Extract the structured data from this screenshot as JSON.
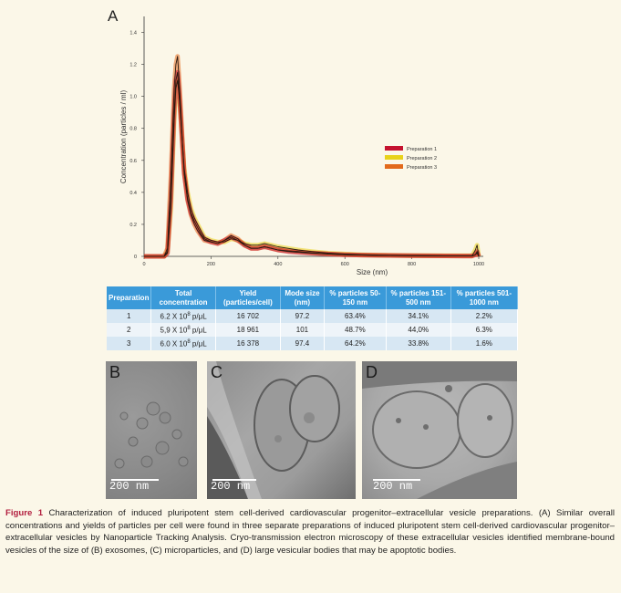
{
  "figure": {
    "panel_a_letter": "A",
    "panel_b_letter": "B",
    "panel_c_letter": "C",
    "panel_d_letter": "D",
    "scale_label": "200 nm"
  },
  "chart_data": {
    "type": "line",
    "xlabel": "Size (nm)",
    "ylabel": "Concentration (particles / ml)",
    "xlim": [
      0,
      1000
    ],
    "ylim": [
      0,
      1.5
    ],
    "x_ticks": [
      "0",
      "200",
      "400",
      "600",
      "800",
      "1000"
    ],
    "y_ticks": [
      "0",
      "0.2",
      "0.4",
      "0.6",
      "0.8",
      "1.0",
      "1.2",
      "1.4"
    ],
    "legend_position": "right",
    "x": [
      0,
      60,
      70,
      80,
      90,
      95,
      100,
      105,
      110,
      115,
      120,
      130,
      140,
      150,
      160,
      170,
      180,
      200,
      220,
      240,
      260,
      280,
      300,
      320,
      340,
      360,
      380,
      400,
      430,
      460,
      500,
      550,
      600,
      650,
      700,
      800,
      900,
      980,
      990,
      995,
      1000
    ],
    "series": [
      {
        "name": "Preparation 1",
        "color": "#c4122f",
        "values": [
          0,
          0,
          0.02,
          0.35,
          0.9,
          1.1,
          1.15,
          1.02,
          0.85,
          0.68,
          0.52,
          0.36,
          0.27,
          0.22,
          0.18,
          0.14,
          0.11,
          0.09,
          0.08,
          0.1,
          0.12,
          0.1,
          0.07,
          0.05,
          0.05,
          0.06,
          0.05,
          0.04,
          0.03,
          0.025,
          0.02,
          0.015,
          0.01,
          0.008,
          0.006,
          0.004,
          0.003,
          0.002,
          0.01,
          0.03,
          0
        ]
      },
      {
        "name": "Preparation 2",
        "color": "#e8d21a",
        "values": [
          0,
          0,
          0.03,
          0.3,
          0.85,
          1.05,
          1.1,
          1.0,
          0.85,
          0.7,
          0.55,
          0.4,
          0.3,
          0.24,
          0.2,
          0.16,
          0.12,
          0.1,
          0.09,
          0.09,
          0.11,
          0.1,
          0.08,
          0.07,
          0.07,
          0.08,
          0.07,
          0.06,
          0.05,
          0.04,
          0.03,
          0.02,
          0.015,
          0.01,
          0.008,
          0.005,
          0.004,
          0.004,
          0.04,
          0.07,
          0
        ]
      },
      {
        "name": "Preparation 3",
        "color": "#e26a1c",
        "values": [
          0,
          0,
          0.05,
          0.5,
          1.05,
          1.2,
          1.25,
          1.1,
          0.9,
          0.7,
          0.52,
          0.35,
          0.26,
          0.2,
          0.16,
          0.13,
          0.1,
          0.09,
          0.08,
          0.1,
          0.13,
          0.11,
          0.07,
          0.05,
          0.05,
          0.06,
          0.05,
          0.04,
          0.035,
          0.03,
          0.022,
          0.015,
          0.01,
          0.008,
          0.006,
          0.004,
          0.003,
          0.002,
          0.01,
          0.02,
          0
        ]
      }
    ]
  },
  "table": {
    "headers": [
      "Preparation",
      "Total concentration",
      "Yield (particles/cell)",
      "Mode size (nm)",
      "% particles 50-150 nm",
      "% particles 151-500 nm",
      "% particles 501-1000 nm"
    ],
    "rows": [
      {
        "prep": "1",
        "conc_base": "6.2 X 10",
        "conc_exp": "8",
        "conc_unit": " p/μL",
        "yield": "16 702",
        "mode": "97.2",
        "p1": "63.4%",
        "p2": "34.1%",
        "p3": "2.2%"
      },
      {
        "prep": "2",
        "conc_base": "5,9 X 10",
        "conc_exp": "8",
        "conc_unit": " p/μL",
        "yield": "18 961",
        "mode": "101",
        "p1": "48.7%",
        "p2": "44,0%",
        "p3": "6.3%"
      },
      {
        "prep": "3",
        "conc_base": "6.0 X 10",
        "conc_exp": "8",
        "conc_unit": " p/μL",
        "yield": "16 378",
        "mode": "97.4",
        "p1": "64.2%",
        "p2": "33.8%",
        "p3": "1.6%"
      }
    ]
  },
  "caption": {
    "label": "Figure 1",
    "text": "Characterization of induced pluripotent stem cell-derived cardiovascular progenitor–extracellular vesicle preparations. (A) Similar overall concentrations and yields of particles per cell were found in three separate preparations of induced pluripotent stem cell-derived cardiovascular progenitor–extracellular vesicles by Nanoparticle Tracking Analysis. Cryo-transmission electron microscopy of these extracellular vesicles identified membrane-bound vesicles of the size of (B) exosomes, (C) microparticles, and (D) large vesicular bodies that may be apoptotic bodies."
  }
}
